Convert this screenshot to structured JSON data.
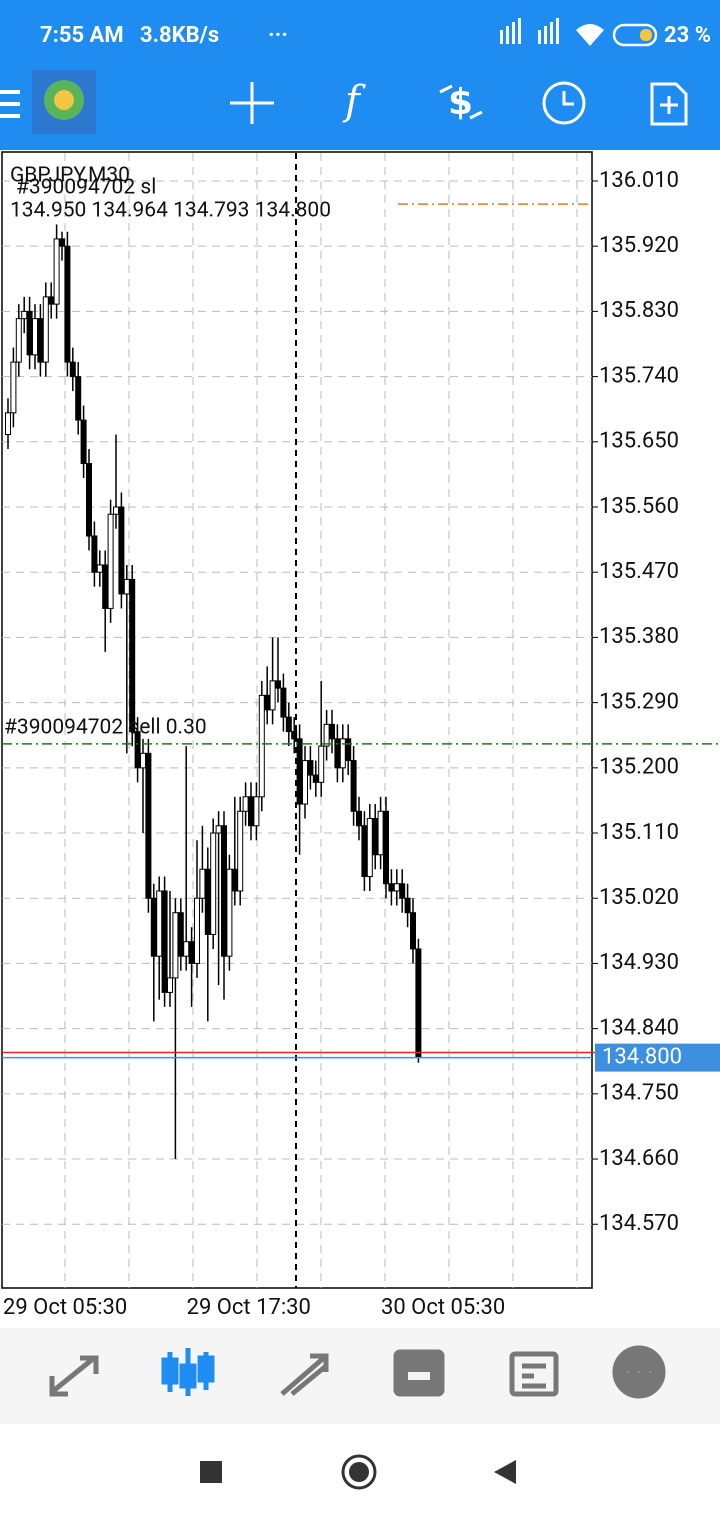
{
  "status": {
    "time": "7:55 AM",
    "speed": "3.8KB/s",
    "battery": "23 %"
  },
  "chart_data": {
    "type": "candlestick",
    "title": "GBPJPY,M30",
    "ohlc_label": "134.950 134.964 134.793 134.800",
    "categories": [
      "29 Oct 05:30",
      null,
      null,
      null,
      null,
      null,
      null,
      null,
      null,
      null,
      null,
      null,
      null,
      null,
      null,
      null,
      null,
      null,
      null,
      null,
      null,
      null,
      null,
      null,
      null,
      null,
      null,
      null,
      null,
      null,
      null,
      null,
      null,
      null,
      "29 Oct 17:30",
      null,
      null,
      null,
      null,
      null,
      null,
      null,
      null,
      null,
      null,
      null,
      null,
      null,
      null,
      null,
      null,
      null,
      null,
      null,
      null,
      null,
      null,
      null,
      null,
      null,
      null,
      null,
      null,
      null,
      null,
      null,
      null,
      null,
      null,
      null,
      "30 Oct 05:30",
      null,
      null,
      null,
      null,
      null,
      null
    ],
    "open": [
      135.66,
      135.69,
      135.76,
      135.82,
      135.83,
      135.77,
      135.82,
      135.76,
      135.85,
      135.84,
      135.93,
      135.92,
      135.76,
      135.74,
      135.68,
      135.62,
      135.52,
      135.47,
      135.48,
      135.42,
      135.55,
      135.56,
      135.44,
      135.46,
      135.25,
      135.2,
      135.22,
      135.02,
      134.94,
      135.03,
      134.89,
      134.91,
      135.0,
      134.94,
      134.96,
      134.93,
      135.02,
      135.06,
      134.97,
      135.11,
      135.12,
      134.94,
      135.06,
      135.03,
      135.14,
      135.16,
      135.12,
      135.16,
      135.3,
      135.28,
      135.32,
      135.31,
      135.27,
      135.25,
      135.24,
      135.15,
      135.21,
      135.19,
      135.18,
      135.23,
      135.26,
      135.24,
      135.2,
      135.24,
      135.21,
      135.14,
      135.12,
      135.05,
      135.13,
      135.08,
      135.14,
      135.04,
      135.03,
      135.04,
      135.02,
      135.0,
      134.95
    ],
    "high": [
      135.71,
      135.78,
      135.84,
      135.85,
      135.85,
      135.84,
      135.84,
      135.87,
      135.87,
      135.95,
      135.94,
      135.94,
      135.78,
      135.76,
      135.7,
      135.64,
      135.54,
      135.5,
      135.5,
      135.57,
      135.66,
      135.58,
      135.48,
      135.48,
      135.27,
      135.24,
      135.24,
      135.04,
      135.05,
      135.05,
      135.03,
      135.02,
      135.02,
      135.23,
      134.98,
      135.1,
      135.12,
      135.09,
      135.13,
      135.14,
      135.14,
      135.08,
      135.16,
      135.16,
      135.18,
      135.18,
      135.18,
      135.32,
      135.34,
      135.38,
      135.38,
      135.33,
      135.29,
      135.27,
      135.26,
      135.23,
      135.23,
      135.21,
      135.32,
      135.28,
      135.28,
      135.26,
      135.26,
      135.26,
      135.23,
      135.16,
      135.14,
      135.15,
      135.15,
      135.16,
      135.16,
      135.06,
      135.06,
      135.06,
      135.04,
      135.02,
      134.964
    ],
    "low": [
      135.64,
      135.67,
      135.74,
      135.8,
      135.75,
      135.75,
      135.74,
      135.74,
      135.82,
      135.82,
      135.9,
      135.74,
      135.72,
      135.66,
      135.6,
      135.5,
      135.45,
      135.45,
      135.36,
      135.4,
      135.53,
      135.42,
      135.22,
      135.23,
      135.18,
      135.11,
      135.0,
      134.85,
      134.88,
      134.87,
      134.87,
      134.66,
      134.92,
      134.92,
      134.87,
      134.91,
      135.0,
      134.85,
      134.95,
      134.9,
      134.88,
      134.92,
      135.01,
      135.01,
      135.12,
      135.1,
      135.1,
      135.14,
      135.26,
      135.26,
      135.29,
      135.25,
      135.23,
      135.22,
      135.08,
      135.13,
      135.17,
      135.16,
      135.16,
      135.21,
      135.22,
      135.18,
      135.18,
      135.19,
      135.12,
      135.1,
      135.03,
      135.03,
      135.06,
      135.06,
      135.02,
      135.01,
      135.01,
      135.0,
      134.98,
      134.93,
      134.793
    ],
    "close": [
      135.69,
      135.76,
      135.82,
      135.83,
      135.77,
      135.82,
      135.76,
      135.85,
      135.84,
      135.93,
      135.92,
      135.76,
      135.74,
      135.68,
      135.62,
      135.52,
      135.47,
      135.48,
      135.42,
      135.55,
      135.56,
      135.44,
      135.46,
      135.25,
      135.2,
      135.22,
      135.02,
      134.94,
      135.03,
      134.89,
      134.91,
      135.0,
      134.94,
      134.96,
      134.93,
      135.02,
      135.06,
      134.97,
      135.11,
      135.12,
      134.94,
      135.06,
      135.03,
      135.14,
      135.16,
      135.12,
      135.16,
      135.3,
      135.28,
      135.32,
      135.31,
      135.27,
      135.25,
      135.24,
      135.15,
      135.21,
      135.19,
      135.18,
      135.23,
      135.26,
      135.24,
      135.2,
      135.24,
      135.21,
      135.14,
      135.12,
      135.05,
      135.13,
      135.08,
      135.14,
      135.04,
      135.03,
      135.04,
      135.02,
      135.0,
      134.95,
      134.8
    ],
    "ylim": [
      134.482,
      136.05
    ],
    "yticks": [
      {
        "value": 136.01,
        "label": "136.010"
      },
      {
        "value": 135.92,
        "label": "135.920"
      },
      {
        "value": 135.83,
        "label": "135.830"
      },
      {
        "value": 135.74,
        "label": "135.740"
      },
      {
        "value": 135.65,
        "label": "135.650"
      },
      {
        "value": 135.56,
        "label": "135.560"
      },
      {
        "value": 135.47,
        "label": "135.470"
      },
      {
        "value": 135.38,
        "label": "135.380"
      },
      {
        "value": 135.29,
        "label": "135.290"
      },
      {
        "value": 135.2,
        "label": "135.200"
      },
      {
        "value": 135.11,
        "label": "135.110"
      },
      {
        "value": 135.02,
        "label": "135.020"
      },
      {
        "value": 134.93,
        "label": "134.930"
      },
      {
        "value": 134.84,
        "label": "134.840"
      },
      {
        "value": 134.75,
        "label": "134.750"
      },
      {
        "value": 134.66,
        "label": "134.660"
      },
      {
        "value": 134.57,
        "label": "134.570"
      }
    ],
    "grid": true,
    "bull_color": "#ffffff",
    "bear_color": "#000000",
    "sl_label": "#390094702 sl",
    "lines": [
      {
        "value": 135.978,
        "color": "#e07a2a"
      },
      {
        "name": "#390094702 sell 0.30",
        "value": 135.233,
        "color": "#1e7a1e"
      },
      {
        "value": 134.807,
        "color": "#d62828"
      }
    ],
    "bid": {
      "value": 134.8,
      "label": "134.800",
      "color": "#3d8fe0"
    }
  }
}
